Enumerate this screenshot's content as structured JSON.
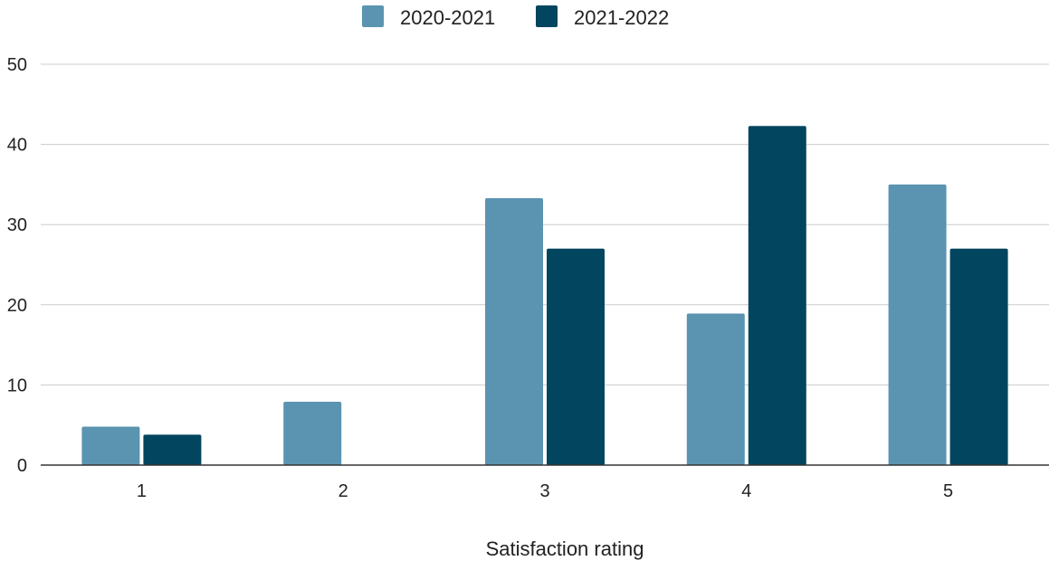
{
  "chart_data": {
    "type": "bar",
    "title": "",
    "xlabel": "Satisfaction rating",
    "ylabel": "",
    "categories": [
      "1",
      "2",
      "3",
      "4",
      "5"
    ],
    "series": [
      {
        "name": "2020-2021",
        "color": "#5b94b1",
        "values": [
          4.8,
          7.9,
          33.3,
          18.9,
          35.0
        ]
      },
      {
        "name": "2021-2022",
        "color": "#02455f",
        "values": [
          3.8,
          0,
          27.0,
          42.3,
          27.0
        ]
      }
    ],
    "yticks": [
      "0",
      "10",
      "20",
      "30",
      "40",
      "50"
    ],
    "ylim": [
      0,
      50
    ],
    "grid": true,
    "legend_position": "top"
  }
}
